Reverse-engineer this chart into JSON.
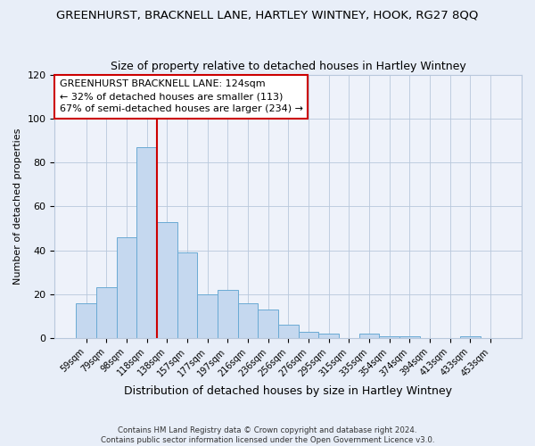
{
  "title": "GREENHURST, BRACKNELL LANE, HARTLEY WINTNEY, HOOK, RG27 8QQ",
  "subtitle": "Size of property relative to detached houses in Hartley Wintney",
  "xlabel": "Distribution of detached houses by size in Hartley Wintney",
  "ylabel": "Number of detached properties",
  "bar_labels": [
    "59sqm",
    "79sqm",
    "98sqm",
    "118sqm",
    "138sqm",
    "157sqm",
    "177sqm",
    "197sqm",
    "216sqm",
    "236sqm",
    "256sqm",
    "276sqm",
    "295sqm",
    "315sqm",
    "335sqm",
    "354sqm",
    "374sqm",
    "394sqm",
    "413sqm",
    "433sqm",
    "453sqm"
  ],
  "bar_values": [
    16,
    23,
    46,
    87,
    53,
    39,
    20,
    22,
    16,
    13,
    6,
    3,
    2,
    0,
    2,
    1,
    1,
    0,
    0,
    1,
    0
  ],
  "bar_color": "#c5d8ef",
  "bar_edge_color": "#6aaad4",
  "vline_x": 3.5,
  "vline_color": "#cc0000",
  "annotation_text": "GREENHURST BRACKNELL LANE: 124sqm\n← 32% of detached houses are smaller (113)\n67% of semi-detached houses are larger (234) →",
  "annotation_box_color": "#ffffff",
  "annotation_box_edge": "#cc0000",
  "ylim": [
    0,
    120
  ],
  "yticks": [
    0,
    20,
    40,
    60,
    80,
    100,
    120
  ],
  "footer": "Contains HM Land Registry data © Crown copyright and database right 2024.\nContains public sector information licensed under the Open Government Licence v3.0.",
  "bg_color": "#e8eef8",
  "plot_bg_color": "#eef2fa",
  "title_fontsize": 9.5,
  "subtitle_fontsize": 9,
  "tick_fontsize": 7,
  "ylabel_fontsize": 8,
  "xlabel_fontsize": 9
}
